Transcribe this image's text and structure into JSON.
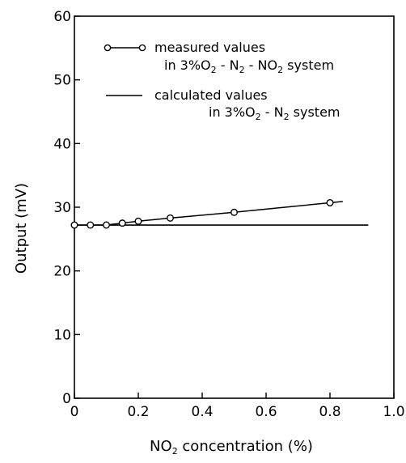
{
  "chart_data": {
    "type": "line",
    "xlabel": "NO2 concentration (%)",
    "ylabel": "Output (mV)",
    "xlim": [
      0,
      1.0
    ],
    "ylim": [
      0,
      60
    ],
    "x_ticks": [
      "0",
      "0.2",
      "0.4",
      "0.6",
      "0.8",
      "1.0"
    ],
    "y_ticks": [
      "0",
      "10",
      "20",
      "30",
      "40",
      "50",
      "60"
    ],
    "grid": false,
    "legend_position": "top-right",
    "series": [
      {
        "name": "measured values in 3%O2 - N2 - NO2 system",
        "style": "line-with-open-circles",
        "x": [
          0,
          0.05,
          0.1,
          0.15,
          0.2,
          0.3,
          0.5,
          0.8
        ],
        "y": [
          27.2,
          27.2,
          27.2,
          27.5,
          27.8,
          28.3,
          29.2,
          30.7
        ],
        "line_extends_to_x": 0.84
      },
      {
        "name": "calculated values in 3%O2 - N2 system",
        "style": "solid-line",
        "x": [
          0,
          0.92
        ],
        "y": [
          27.2,
          27.2
        ]
      }
    ],
    "legend": {
      "measured_line1": "measured values",
      "measured_line2_a": "in 3%O",
      "measured_line2_sub1": "2",
      "measured_line2_b": " - N",
      "measured_line2_sub2": "2",
      "measured_line2_c": " - NO",
      "measured_line2_sub3": "2",
      "measured_line2_d": " system",
      "calculated_line1": "calculated values",
      "calculated_line2_a": "in 3%O",
      "calculated_line2_sub1": "2",
      "calculated_line2_b": " - N",
      "calculated_line2_sub2": "2",
      "calculated_line2_c": " system"
    },
    "xlabel_parts": {
      "a": "NO",
      "sub": "2",
      "b": " concentration (%)"
    }
  }
}
